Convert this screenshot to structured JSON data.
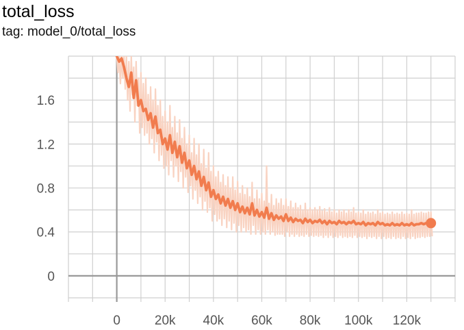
{
  "title": "total_loss",
  "subtitle": "tag: model_0/total_loss",
  "colors": {
    "smoothed": "#f17c4e",
    "raw": "#f9d3c2",
    "grid": "#cfcfcf",
    "axis": "#999999"
  },
  "chart_data": {
    "type": "line",
    "title": "total_loss",
    "subtitle": "tag: model_0/total_loss",
    "xlabel": "",
    "ylabel": "",
    "xlim": [
      -20000,
      140000
    ],
    "ylim": [
      -0.2,
      2.0
    ],
    "x_ticks": [
      0,
      20000,
      40000,
      60000,
      80000,
      100000,
      120000
    ],
    "x_tick_labels": [
      "0",
      "20k",
      "40k",
      "60k",
      "80k",
      "100k",
      "120k"
    ],
    "y_ticks": [
      0,
      0.4,
      0.8,
      1.2,
      1.6
    ],
    "y_tick_labels": [
      "0",
      "0.4",
      "0.8",
      "1.2",
      "1.6"
    ],
    "grid": true,
    "legend": "none",
    "series": [
      {
        "x": [
          0,
          1000,
          2000,
          3000,
          4000,
          5000,
          6000,
          7000,
          8000,
          9000,
          10000,
          11000,
          12000,
          13000,
          14000,
          15000,
          16000,
          17000,
          18000,
          19000,
          20000,
          21000,
          22000,
          23000,
          24000,
          25000,
          26000,
          27000,
          28000,
          29000,
          30000,
          31000,
          32000,
          33000,
          34000,
          35000,
          36000,
          37000,
          38000,
          39000,
          40000,
          41000,
          42000,
          43000,
          44000,
          45000,
          46000,
          47000,
          48000,
          49000,
          50000,
          51000,
          52000,
          53000,
          54000,
          55000,
          56000,
          57000,
          58000,
          59000,
          60000,
          61000,
          62000,
          63000,
          64000,
          65000,
          66000,
          67000,
          68000,
          69000,
          70000,
          71000,
          72000,
          73000,
          74000,
          75000,
          76000,
          77000,
          78000,
          79000,
          80000,
          81000,
          82000,
          83000,
          84000,
          85000,
          86000,
          87000,
          88000,
          89000,
          90000,
          91000,
          92000,
          93000,
          94000,
          95000,
          96000,
          97000,
          98000,
          99000,
          100000,
          101000,
          102000,
          103000,
          104000,
          105000,
          106000,
          107000,
          108000,
          109000,
          110000,
          111000,
          112000,
          113000,
          114000,
          115000,
          116000,
          117000,
          118000,
          119000,
          120000,
          121000,
          122000,
          123000,
          124000,
          125000,
          126000,
          127000,
          128000,
          129000,
          130000
        ],
        "smoothed": [
          2.0,
          1.95,
          1.98,
          1.9,
          1.8,
          1.72,
          1.85,
          1.62,
          1.78,
          1.55,
          1.6,
          1.5,
          1.52,
          1.42,
          1.48,
          1.35,
          1.45,
          1.3,
          1.33,
          1.2,
          1.25,
          1.15,
          1.28,
          1.12,
          1.22,
          1.08,
          1.18,
          1.03,
          1.12,
          0.98,
          1.05,
          0.92,
          1.0,
          0.88,
          0.95,
          0.82,
          0.9,
          0.78,
          0.85,
          0.72,
          0.78,
          0.7,
          0.74,
          0.66,
          0.72,
          0.64,
          0.7,
          0.62,
          0.68,
          0.6,
          0.66,
          0.58,
          0.63,
          0.57,
          0.62,
          0.56,
          0.66,
          0.55,
          0.6,
          0.54,
          0.58,
          0.53,
          0.62,
          0.52,
          0.57,
          0.51,
          0.55,
          0.52,
          0.54,
          0.5,
          0.56,
          0.5,
          0.53,
          0.49,
          0.52,
          0.5,
          0.51,
          0.48,
          0.52,
          0.49,
          0.51,
          0.48,
          0.5,
          0.49,
          0.51,
          0.48,
          0.5,
          0.47,
          0.5,
          0.48,
          0.49,
          0.47,
          0.5,
          0.48,
          0.49,
          0.47,
          0.49,
          0.48,
          0.5,
          0.47,
          0.48,
          0.47,
          0.49,
          0.46,
          0.48,
          0.47,
          0.48,
          0.46,
          0.49,
          0.47,
          0.48,
          0.46,
          0.47,
          0.46,
          0.48,
          0.46,
          0.47,
          0.46,
          0.48,
          0.46,
          0.47,
          0.46,
          0.48,
          0.46,
          0.47,
          0.47,
          0.48,
          0.47,
          0.48,
          0.48,
          0.48
        ],
        "raw_high": [
          2.0,
          2.0,
          2.0,
          2.0,
          2.0,
          1.95,
          2.0,
          1.9,
          1.95,
          1.8,
          1.85,
          1.75,
          1.8,
          1.65,
          1.72,
          1.6,
          1.7,
          1.55,
          1.6,
          1.45,
          1.5,
          1.4,
          1.55,
          1.35,
          1.45,
          1.3,
          1.42,
          1.25,
          1.35,
          1.2,
          1.28,
          1.12,
          1.25,
          1.1,
          1.2,
          1.02,
          1.15,
          0.98,
          1.12,
          0.95,
          1.0,
          0.9,
          0.95,
          0.85,
          0.92,
          0.82,
          0.9,
          0.8,
          0.9,
          0.78,
          0.86,
          0.75,
          0.82,
          0.74,
          0.8,
          0.72,
          0.85,
          0.7,
          0.78,
          0.7,
          0.75,
          0.68,
          1.0,
          0.66,
          0.74,
          0.64,
          0.7,
          0.66,
          0.7,
          0.64,
          0.7,
          0.63,
          0.68,
          0.62,
          0.66,
          0.62,
          0.64,
          0.6,
          0.66,
          0.6,
          0.62,
          0.6,
          0.62,
          0.6,
          0.63,
          0.59,
          0.61,
          0.58,
          0.62,
          0.58,
          0.6,
          0.57,
          0.6,
          0.58,
          0.6,
          0.57,
          0.6,
          0.58,
          0.62,
          0.57,
          0.58,
          0.57,
          0.6,
          0.56,
          0.58,
          0.57,
          0.58,
          0.56,
          0.6,
          0.57,
          0.58,
          0.56,
          0.57,
          0.56,
          0.58,
          0.56,
          0.57,
          0.56,
          0.58,
          0.56,
          0.57,
          0.56,
          0.6,
          0.56,
          0.57,
          0.57,
          0.58,
          0.57,
          0.57,
          0.58,
          0.58
        ],
        "raw_low": [
          1.85,
          1.75,
          1.8,
          1.7,
          1.6,
          1.5,
          1.65,
          1.4,
          1.55,
          1.3,
          1.35,
          1.28,
          1.3,
          1.2,
          1.25,
          1.12,
          1.22,
          1.05,
          1.1,
          0.98,
          1.0,
          0.92,
          1.05,
          0.9,
          1.0,
          0.86,
          0.95,
          0.8,
          0.9,
          0.76,
          0.82,
          0.7,
          0.78,
          0.66,
          0.72,
          0.6,
          0.68,
          0.58,
          0.62,
          0.5,
          0.56,
          0.5,
          0.52,
          0.46,
          0.52,
          0.44,
          0.5,
          0.42,
          0.48,
          0.4,
          0.46,
          0.4,
          0.44,
          0.4,
          0.42,
          0.38,
          0.46,
          0.38,
          0.42,
          0.38,
          0.4,
          0.38,
          0.42,
          0.38,
          0.4,
          0.37,
          0.38,
          0.38,
          0.38,
          0.36,
          0.4,
          0.36,
          0.38,
          0.36,
          0.38,
          0.36,
          0.37,
          0.36,
          0.38,
          0.36,
          0.37,
          0.36,
          0.37,
          0.36,
          0.37,
          0.35,
          0.37,
          0.35,
          0.37,
          0.35,
          0.36,
          0.35,
          0.37,
          0.35,
          0.36,
          0.35,
          0.36,
          0.35,
          0.37,
          0.35,
          0.36,
          0.35,
          0.36,
          0.34,
          0.36,
          0.35,
          0.36,
          0.34,
          0.36,
          0.34,
          0.36,
          0.34,
          0.35,
          0.34,
          0.36,
          0.34,
          0.35,
          0.34,
          0.36,
          0.34,
          0.35,
          0.34,
          0.36,
          0.34,
          0.35,
          0.35,
          0.36,
          0.35,
          0.36,
          0.36,
          0.36
        ],
        "last_point": [
          130000,
          0.48
        ]
      }
    ]
  }
}
